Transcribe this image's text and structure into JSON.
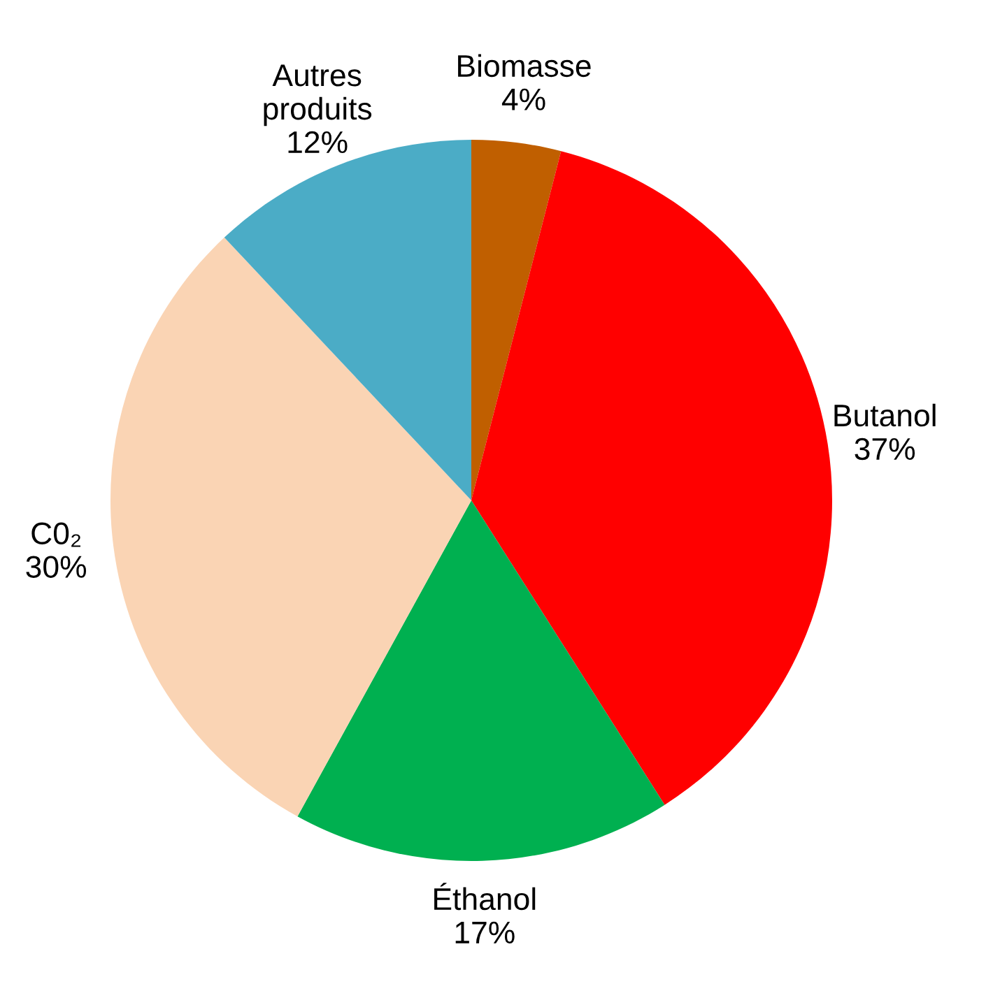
{
  "chart_data": {
    "type": "pie",
    "categories": [
      "Biomasse",
      "Butanol",
      "Éthanol",
      "C0₂",
      "Autres\nproduits"
    ],
    "values": [
      4,
      37,
      17,
      30,
      12
    ],
    "value_labels": [
      "4%",
      "37%",
      "17%",
      "30%",
      "12%"
    ],
    "colors": [
      "#c05f00",
      "#ff0000",
      "#00b050",
      "#fad4b4",
      "#4bacc6"
    ],
    "legend": false
  }
}
